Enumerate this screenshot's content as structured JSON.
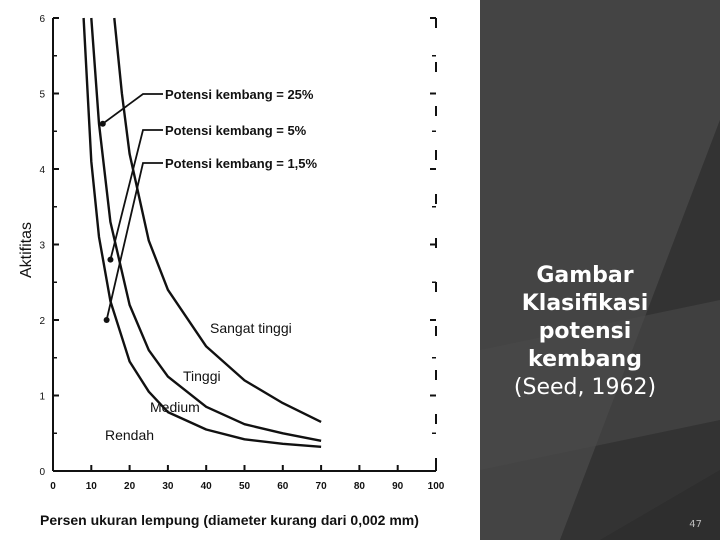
{
  "slide": {
    "caption_title": "Gambar Klasifikasi potensi kembang",
    "caption_source": "(Seed, 1962)",
    "page_number": "47"
  },
  "colors": {
    "background": "#3a3a3a",
    "caption_text": "#ffffff",
    "figure_background": "#ffffff",
    "ink": "#111111"
  },
  "chart_data": {
    "type": "line",
    "title": "",
    "xlabel": "Persen ukuran lempung (diameter kurang dari 0,002 mm)",
    "ylabel": "Aktifitas",
    "xlim": [
      0,
      100
    ],
    "ylim": [
      0,
      6
    ],
    "xticks": [
      "0",
      "10",
      "20",
      "30",
      "40",
      "50",
      "60",
      "70",
      "80",
      "90",
      "100"
    ],
    "yticks": [
      "0",
      "1",
      "2",
      "3",
      "4",
      "5",
      "6"
    ],
    "grid": false,
    "series": [
      {
        "name": "Potensi kembang = 25%",
        "x": [
          8,
          10,
          12,
          15,
          20,
          25,
          30,
          40,
          50,
          60,
          70
        ],
        "y": [
          6.0,
          4.1,
          3.1,
          2.25,
          1.45,
          1.05,
          0.78,
          0.55,
          0.42,
          0.36,
          0.32
        ]
      },
      {
        "name": "Potensi kembang = 5%",
        "x": [
          10,
          12,
          15,
          20,
          25,
          30,
          40,
          50,
          60,
          70
        ],
        "y": [
          6.0,
          4.6,
          3.3,
          2.2,
          1.6,
          1.25,
          0.85,
          0.62,
          0.5,
          0.4
        ]
      },
      {
        "name": "Potensi kembang = 1,5%",
        "x": [
          16,
          18,
          20,
          25,
          30,
          40,
          50,
          60,
          70
        ],
        "y": [
          6.0,
          5.0,
          4.2,
          3.05,
          2.4,
          1.65,
          1.2,
          0.9,
          0.65
        ]
      }
    ],
    "annotations": [
      {
        "text": "Potensi kembang = 25%",
        "points_to_series": 0
      },
      {
        "text": "Potensi kembang = 5%",
        "points_to_series": 1
      },
      {
        "text": "Potensi kembang = 1,5%",
        "points_to_series": 2
      }
    ],
    "region_labels": [
      "Sangat tinggi",
      "Tinggi",
      "Medium",
      "Rendah"
    ]
  }
}
